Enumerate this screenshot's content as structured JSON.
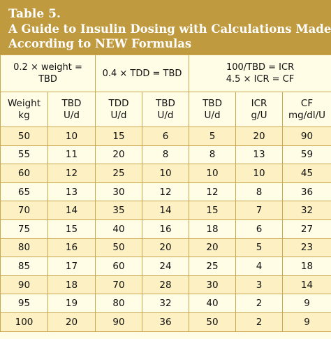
{
  "title": {
    "line1": "Table 5.",
    "line2": "A Guide to Insulin Dosing with Calculations Made",
    "line3": "According to NEW Formulas"
  },
  "groups": [
    {
      "line1": "0.2 × weight =",
      "line2": "TBD"
    },
    {
      "line1": "0.4 × TDD = TBD",
      "line2": ""
    },
    {
      "line1": "100/TBD = ICR",
      "line2": "4.5 × ICR = CF"
    }
  ],
  "columns": [
    {
      "line1": "Weight",
      "line2": "kg"
    },
    {
      "line1": "TBD",
      "line2": "U/d"
    },
    {
      "line1": "TDD",
      "line2": "U/d"
    },
    {
      "line1": "TBD",
      "line2": "U/d"
    },
    {
      "line1": "TBD",
      "line2": "U/d"
    },
    {
      "line1": "ICR",
      "line2": "g/U"
    },
    {
      "line1": "CF",
      "line2": "mg/dl/U"
    }
  ],
  "rows": [
    [
      "50",
      "10",
      "15",
      "6",
      "5",
      "20",
      "90"
    ],
    [
      "55",
      "11",
      "20",
      "8",
      "8",
      "13",
      "59"
    ],
    [
      "60",
      "12",
      "25",
      "10",
      "10",
      "10",
      "45"
    ],
    [
      "65",
      "13",
      "30",
      "12",
      "12",
      "8",
      "36"
    ],
    [
      "70",
      "14",
      "35",
      "14",
      "15",
      "7",
      "32"
    ],
    [
      "75",
      "15",
      "40",
      "16",
      "18",
      "6",
      "27"
    ],
    [
      "80",
      "16",
      "50",
      "20",
      "20",
      "5",
      "23"
    ],
    [
      "85",
      "17",
      "60",
      "24",
      "25",
      "4",
      "18"
    ],
    [
      "90",
      "18",
      "70",
      "28",
      "30",
      "3",
      "14"
    ],
    [
      "95",
      "19",
      "80",
      "32",
      "40",
      "2",
      "9"
    ],
    [
      "100",
      "20",
      "90",
      "36",
      "50",
      "2",
      "9"
    ]
  ],
  "colors": {
    "header_bg": "#bf9a3f",
    "rule": "#c9a74d",
    "row_shade": "#fdf1c3",
    "row_plain": "#fffde6"
  }
}
